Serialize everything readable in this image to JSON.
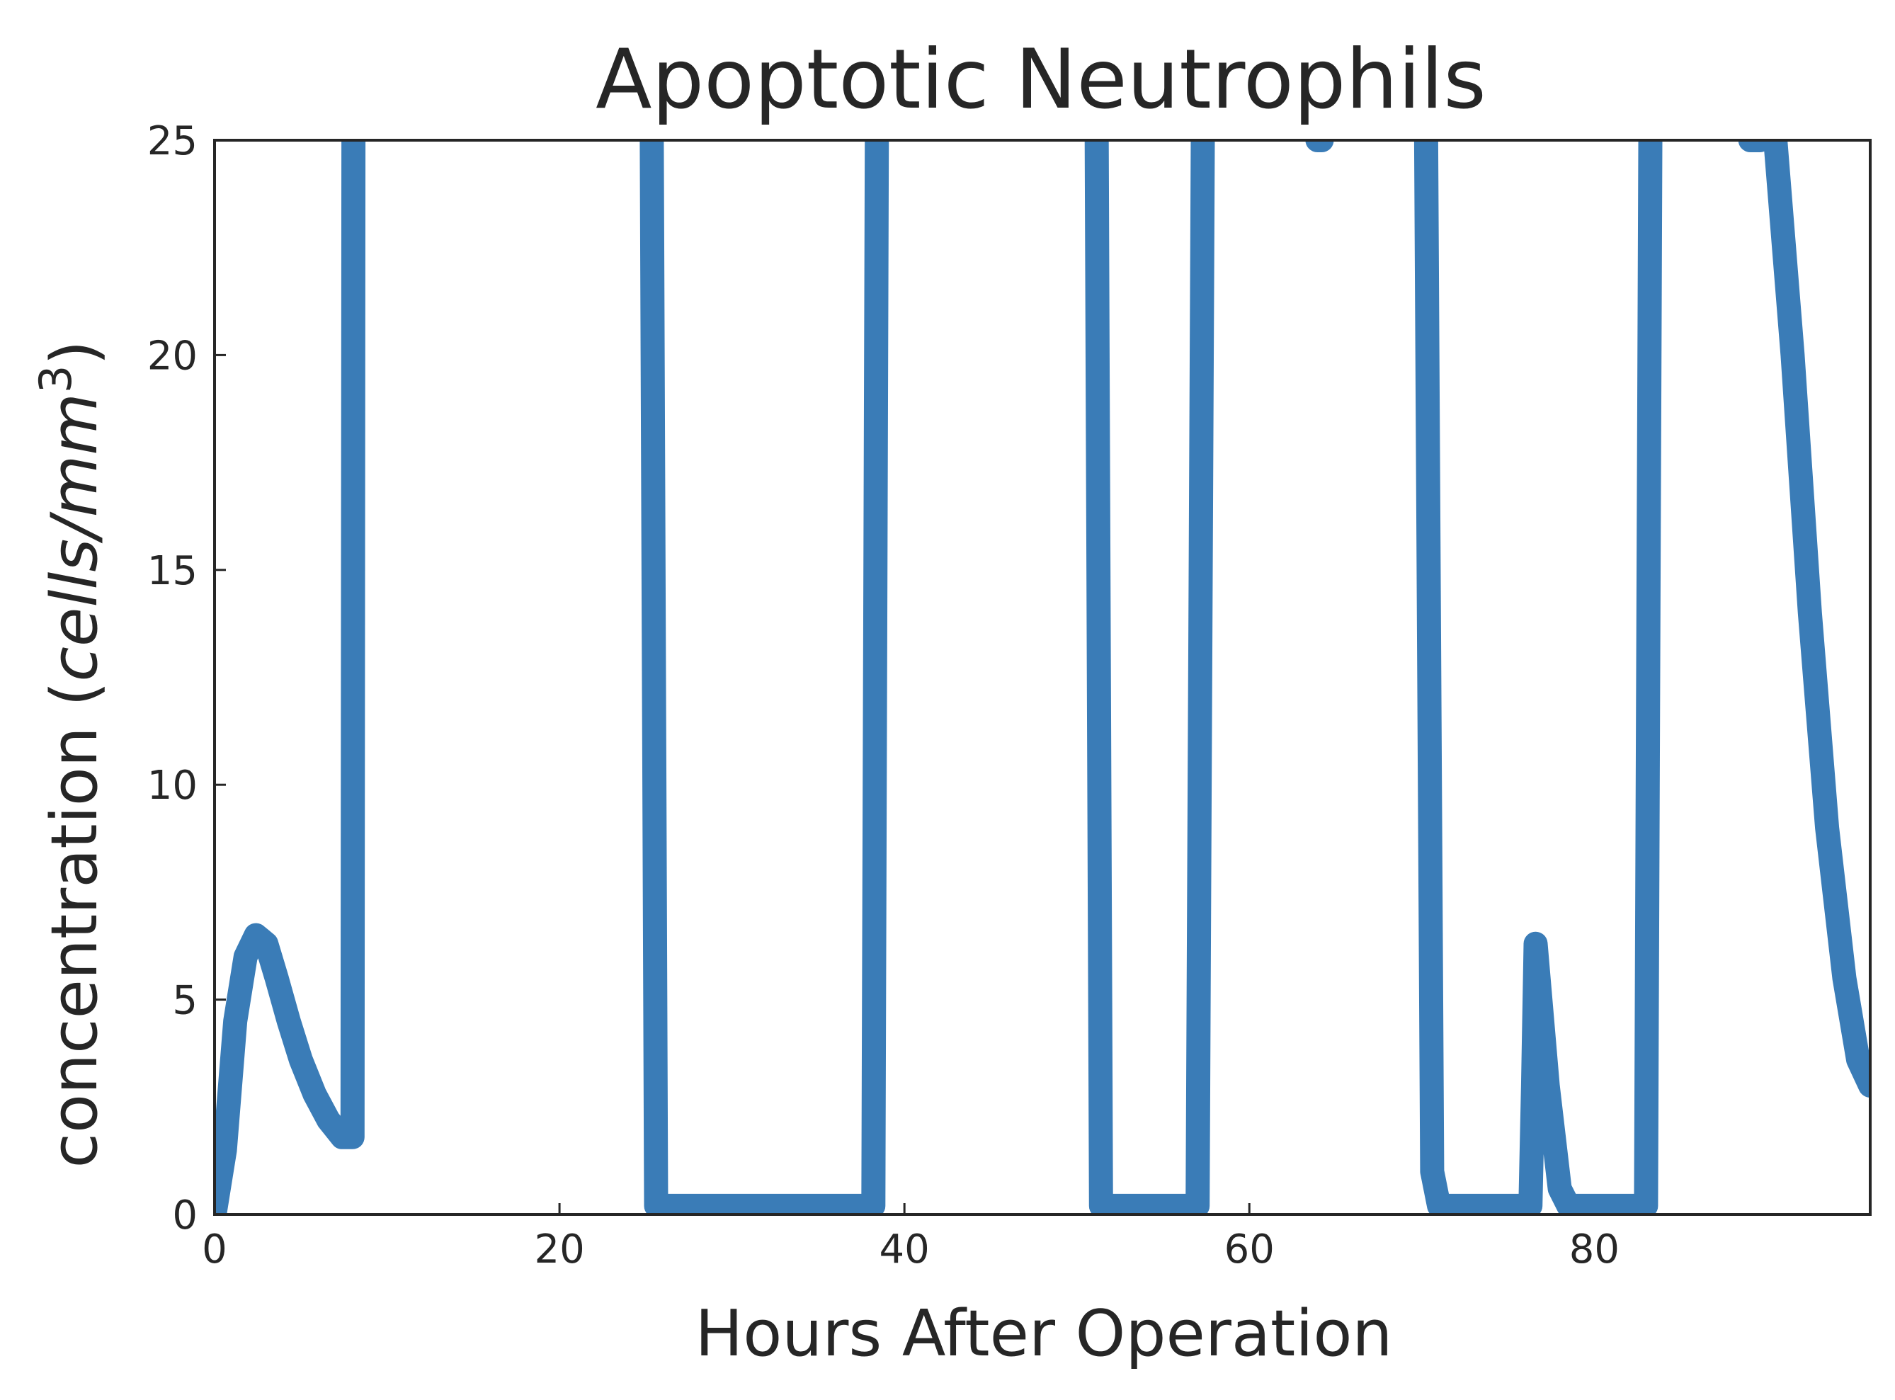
{
  "chart_data": {
    "type": "line",
    "title": "Apoptotic Neutrophils",
    "xlabel": "Hours After Operation",
    "ylabel": {
      "prefix": "concentration (",
      "unit": "cells/mm",
      "superscript": "3",
      "suffix": ")"
    },
    "xlim": [
      0,
      96
    ],
    "ylim": [
      0,
      25
    ],
    "xticks": [
      0,
      20,
      40,
      60,
      80
    ],
    "yticks": [
      0,
      5,
      10,
      15,
      20,
      25
    ],
    "grid": false,
    "colors": {
      "series": "#3a7cb7",
      "axes": "#262626",
      "background": "#ffffff"
    },
    "series": [
      {
        "x": [
          0,
          0.6,
          1.2,
          1.8,
          2.4,
          3.0,
          3.6,
          4.3,
          5.0,
          5.8,
          6.6,
          7.4,
          8.0,
          8.05,
          8.1,
          25.3,
          25.35,
          25.6,
          26.5,
          38.2,
          38.4,
          38.45,
          51.1,
          51.15,
          51.4,
          52.3,
          57.0,
          57.3,
          57.35,
          63.9,
          63.95,
          64.2,
          64.25,
          70.2,
          70.25,
          70.6,
          71.0,
          76.0,
          76.3,
          76.45,
          76.6,
          77.3,
          78.0,
          78.5,
          83.0,
          83.25,
          83.3,
          89.0,
          89.05,
          89.6,
          89.65,
          90.5,
          91.5,
          92.5,
          93.5,
          94.5,
          95.3,
          96.0
        ],
        "y": [
          0,
          1.5,
          4.5,
          6.0,
          6.5,
          6.3,
          5.5,
          4.5,
          3.6,
          2.8,
          2.2,
          1.8,
          1.8,
          25,
          28,
          28,
          25,
          0.2,
          0.2,
          0.2,
          25,
          28,
          28,
          25,
          0.2,
          0.2,
          0.2,
          25,
          28,
          28,
          25,
          25,
          28,
          28,
          25,
          1.0,
          0.2,
          0.2,
          0.2,
          3.0,
          6.3,
          3.0,
          0.6,
          0.2,
          0.2,
          25,
          28,
          28,
          25,
          25,
          28,
          25,
          20,
          14,
          9,
          5.5,
          3.6,
          3.0
        ]
      }
    ]
  }
}
